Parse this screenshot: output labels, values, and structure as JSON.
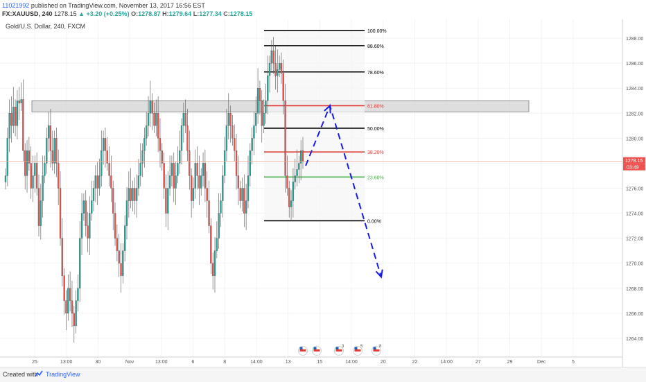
{
  "header": {
    "user": "11021992",
    "published": " published on TradingView.com, November 13, 2017 16:56 EST",
    "symbol": "FX:XAUUSD, 240",
    "last": "1278.15",
    "change": "▲ +3.20 (+0.25%)",
    "o_label": "O:",
    "o": "1278.87",
    "h_label": "H:",
    "h": "1279.64",
    "l_label": "L:",
    "l": "1277.34",
    "c_label": "C:",
    "c": "1278.15"
  },
  "title": "Gold/U.S. Dollar, 240, FXCM",
  "price_tag": {
    "value": "1278.15",
    "countdown": "03:49"
  },
  "footer": {
    "created": "Created with",
    "brand": "TradingView"
  },
  "colors": {
    "up": "#26a69a",
    "down": "#ef5350",
    "fib_black": "#000000",
    "fib_red": "#e53935",
    "fib_green": "#4caf50",
    "projection": "#1a1ae6",
    "zone": "#d9d9d9",
    "price_line": "#f4a48a"
  },
  "chart_data": {
    "type": "candlestick",
    "y_ticks": [
      "1264.00",
      "1266.00",
      "1268.00",
      "1270.00",
      "1272.00",
      "1274.00",
      "1276.00",
      "1278.00",
      "1280.00",
      "1282.00",
      "1284.00",
      "1286.00",
      "1288.00"
    ],
    "x_ticks": [
      "25",
      "13:00",
      "30",
      "Nov",
      "13:00",
      "6",
      "8",
      "14:00",
      "13",
      "15",
      "14:00",
      "20",
      "22",
      "14:00",
      "27",
      "29",
      "Dec",
      "5"
    ],
    "ylim": [
      1262.5,
      1289.5
    ],
    "resistance_zone": [
      1282.1,
      1283.0
    ],
    "current_price": 1278.15,
    "fibonacci": [
      {
        "label": "100.00%",
        "price": 1288.6,
        "color": "black"
      },
      {
        "label": "88.60%",
        "price": 1287.4,
        "color": "black"
      },
      {
        "label": "78.60%",
        "price": 1285.3,
        "color": "black"
      },
      {
        "label": "61.80%",
        "price": 1282.6,
        "color": "red"
      },
      {
        "label": "50.00%",
        "price": 1280.8,
        "color": "black"
      },
      {
        "label": "38.20%",
        "price": 1278.9,
        "color": "red"
      },
      {
        "label": "23.60%",
        "price": 1276.9,
        "color": "green"
      },
      {
        "label": "0.00%",
        "price": 1273.4,
        "color": "black"
      }
    ],
    "projection": [
      {
        "step": 0,
        "price": 1277.8
      },
      {
        "step": 1,
        "price": 1282.6
      },
      {
        "step": 2,
        "price": 1268.9
      }
    ],
    "closes": [
      1277,
      1280,
      1282,
      1281,
      1282.5,
      1281,
      1283,
      1282.8,
      1283.1,
      1279,
      1277,
      1279,
      1278,
      1276,
      1277,
      1278,
      1276,
      1273,
      1275,
      1277,
      1278,
      1280,
      1281,
      1279,
      1278,
      1280,
      1278,
      1276,
      1272,
      1269,
      1267,
      1266,
      1268,
      1267,
      1266,
      1265,
      1267,
      1268,
      1272,
      1274,
      1275,
      1273,
      1272,
      1274,
      1275,
      1276,
      1277,
      1276,
      1277,
      1279,
      1280,
      1279,
      1278,
      1277,
      1276,
      1274,
      1272,
      1271,
      1270,
      1269,
      1271,
      1273,
      1275,
      1276,
      1275,
      1276,
      1275,
      1276,
      1277,
      1278,
      1279,
      1280,
      1281,
      1282,
      1283,
      1282,
      1281,
      1282,
      1280,
      1279,
      1278,
      1276,
      1274,
      1276,
      1277,
      1278,
      1276,
      1277,
      1278,
      1279,
      1281,
      1282,
      1281,
      1279,
      1277,
      1275,
      1276,
      1278,
      1277,
      1276,
      1277,
      1278,
      1276,
      1275,
      1273,
      1270,
      1269,
      1271,
      1272,
      1274,
      1275,
      1277,
      1279,
      1281,
      1282,
      1281,
      1280,
      1279,
      1277,
      1276,
      1275,
      1276,
      1274,
      1275,
      1277,
      1279,
      1280,
      1281,
      1282,
      1284,
      1283,
      1281,
      1282,
      1283,
      1285,
      1286,
      1287,
      1286,
      1285,
      1285.5,
      1286,
      1285.2,
      1283,
      1277,
      1276,
      1274.5,
      1275,
      1276.5,
      1277,
      1277.5,
      1278,
      1279,
      1278.15
    ]
  }
}
